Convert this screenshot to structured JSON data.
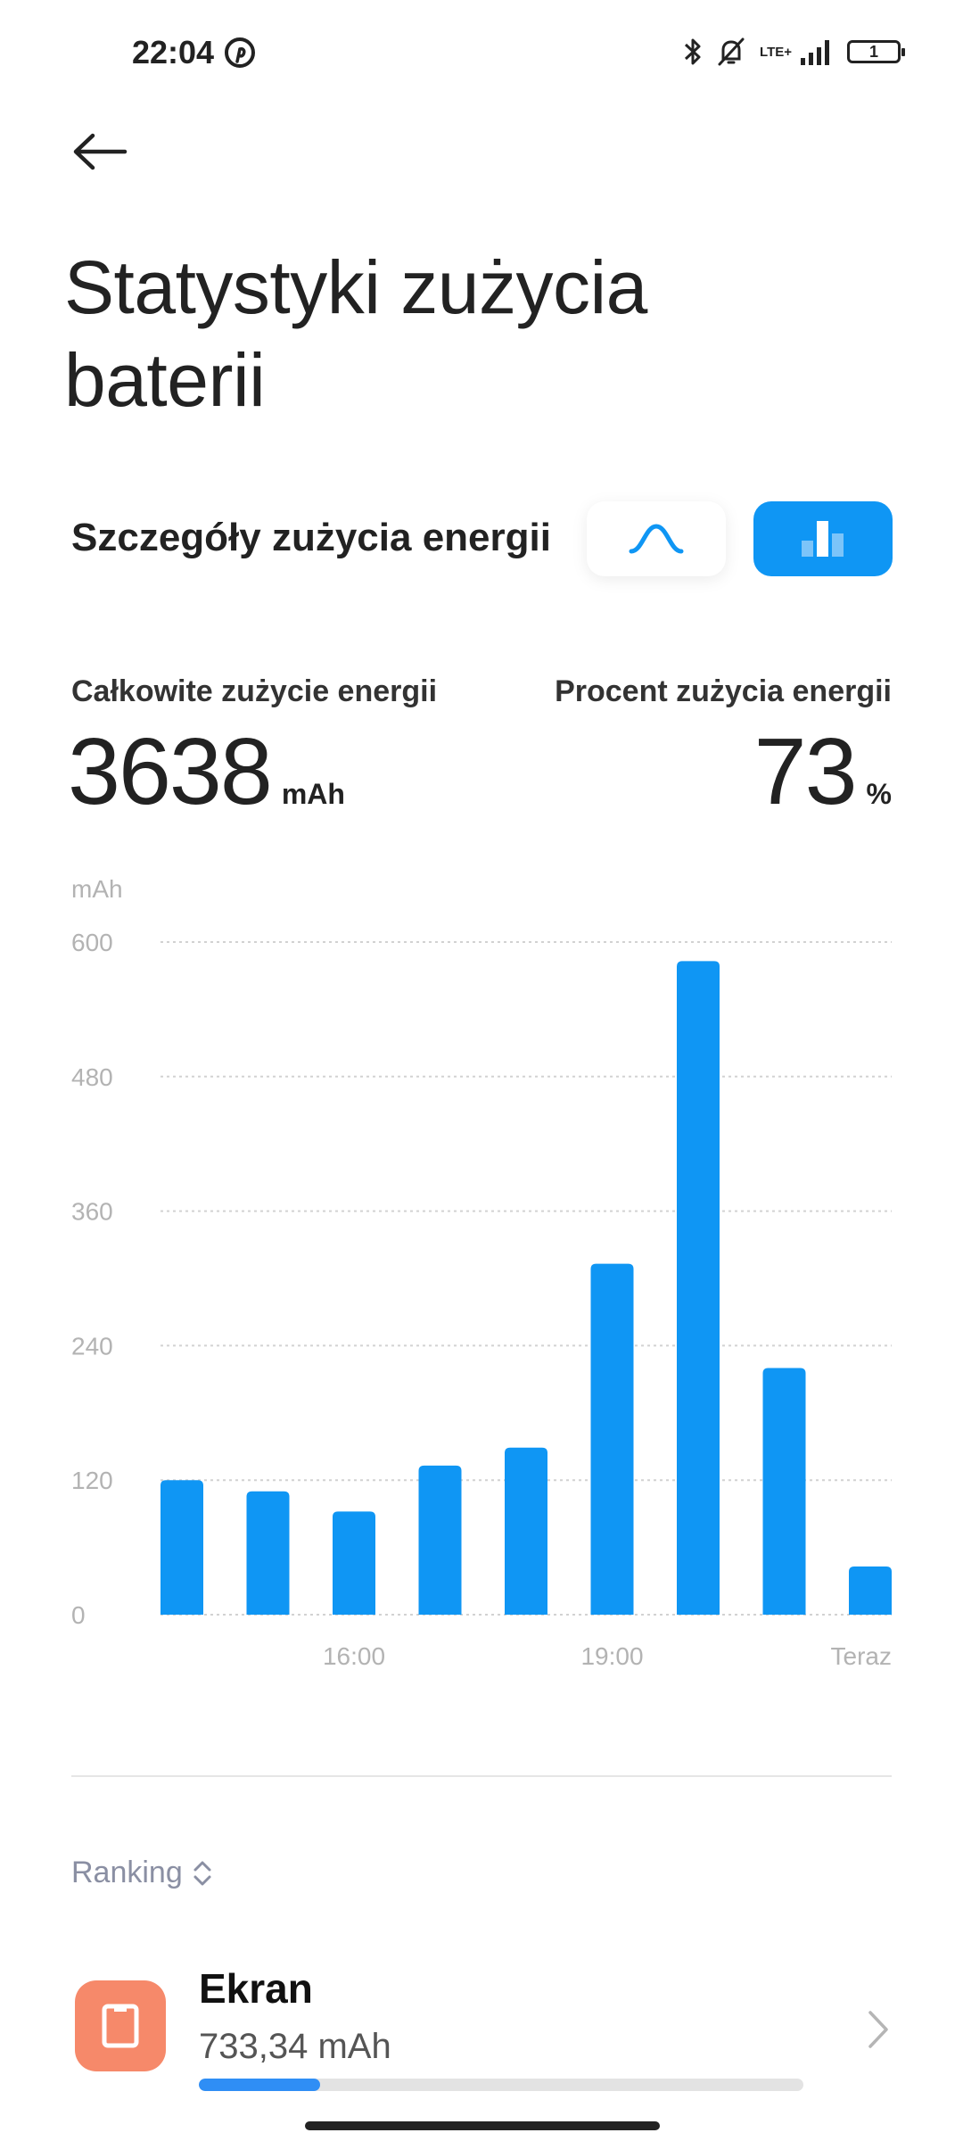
{
  "status_bar": {
    "time": "22:04",
    "network": "LTE+",
    "battery_level": "1",
    "icons": [
      "pinterest-icon",
      "bluetooth-icon",
      "muted-bell-icon",
      "signal-icon",
      "battery-icon"
    ]
  },
  "header": {
    "title": "Statystyki zużycia baterii",
    "back_icon": "arrow-left-icon"
  },
  "section": {
    "title": "Szczegóły zużycia energii",
    "toggles": [
      {
        "name": "line-chart-toggle",
        "icon": "curve-icon",
        "selected": false
      },
      {
        "name": "bar-chart-toggle",
        "icon": "bar-chart-icon",
        "selected": true
      }
    ],
    "accent_color": "#0f96f4"
  },
  "stats": {
    "total_label": "Całkowite zużycie energii",
    "total_value": "3638",
    "total_unit": "mAh",
    "percent_label": "Procent zużycia energii",
    "percent_value": "73",
    "percent_unit": "%"
  },
  "chart_data": {
    "type": "bar",
    "ylabel": "mAh",
    "ylim": [
      0,
      600
    ],
    "yticks": [
      0,
      120,
      240,
      360,
      480,
      600
    ],
    "xtick_labels": [
      {
        "index": 2,
        "label": "16:00"
      },
      {
        "index": 5,
        "label": "19:00"
      },
      {
        "index": 8,
        "label": "Teraz"
      }
    ],
    "values": [
      120,
      110,
      92,
      133,
      149,
      313,
      583,
      220,
      43
    ],
    "bar_color": "#0f96f4",
    "grid": true
  },
  "ranking": {
    "label": "Ranking",
    "icon": "sort-arrows-icon"
  },
  "list": [
    {
      "name": "Ekran",
      "value": "733,34 mAh",
      "icon": "screen-icon",
      "icon_color": "#f6896a",
      "progress": 0.2
    }
  ]
}
